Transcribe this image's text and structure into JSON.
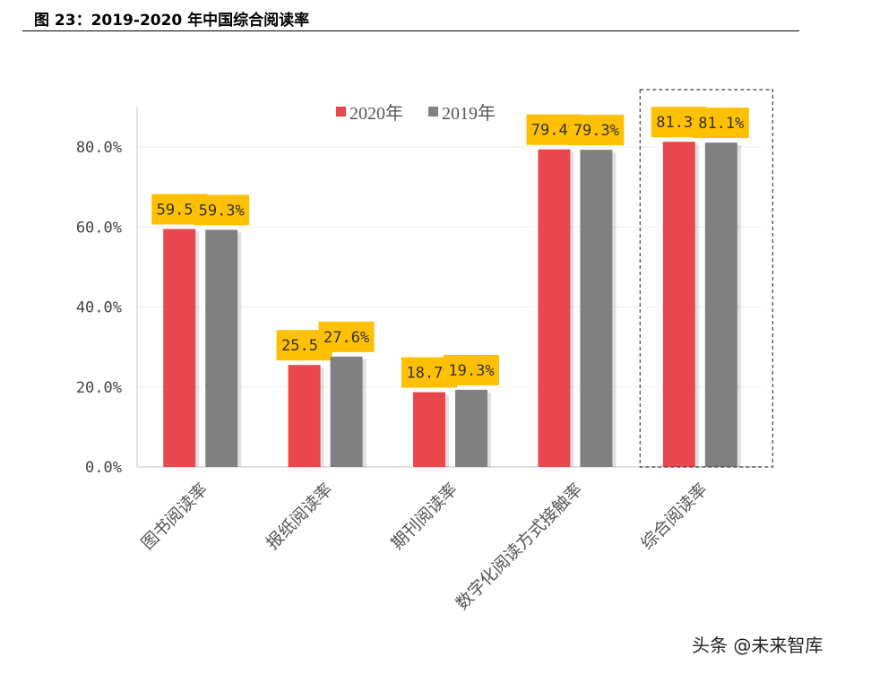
{
  "header": {
    "title": "图 23：2019-2020 年中国综合阅读率"
  },
  "watermark": "头条 @未来智库",
  "chart_data": {
    "type": "bar",
    "title": "",
    "xlabel": "",
    "ylabel": "",
    "categories": [
      "图书阅读率",
      "报纸阅读率",
      "期刊阅读率",
      "数字化阅读方式接触率",
      "综合阅读率"
    ],
    "series": [
      {
        "name": "2020年",
        "values": [
          59.5,
          25.5,
          18.7,
          79.4,
          81.3
        ],
        "color": "#E8474E"
      },
      {
        "name": "2019年",
        "values": [
          59.3,
          27.6,
          19.3,
          79.3,
          81.1
        ],
        "color": "#808080"
      }
    ],
    "data_labels": [
      [
        "59.5%",
        "25.5%",
        "18.7%",
        "79.4%",
        "81.3%"
      ],
      [
        "59.3%",
        "27.6%",
        "19.3%",
        "79.3%",
        "81.1%"
      ]
    ],
    "ylim": [
      0,
      90
    ],
    "yticks": [
      0,
      20,
      40,
      60,
      80
    ],
    "ytick_labels": [
      "0.0%",
      "20.0%",
      "40.0%",
      "60.0%",
      "80.0%"
    ],
    "grid": true,
    "legend": "top-center",
    "label_box_color": "#FFC000",
    "highlight": "综合阅读率 (dashed box)"
  }
}
